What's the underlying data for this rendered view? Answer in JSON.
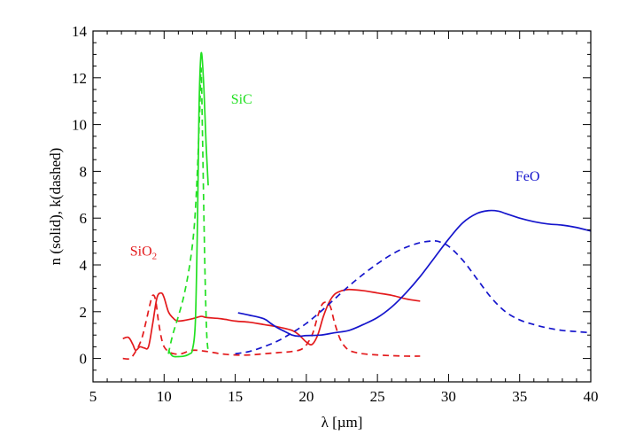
{
  "chart_data": {
    "type": "line",
    "title": "",
    "xlabel": "λ [µm]",
    "ylabel": "n (solid), k(dashed)",
    "xlim": [
      5,
      40
    ],
    "ylim": [
      -1,
      14
    ],
    "xticks": [
      5,
      10,
      15,
      20,
      25,
      30,
      35,
      40
    ],
    "yticks": [
      0,
      2,
      4,
      6,
      8,
      10,
      12,
      14
    ],
    "grid": false,
    "labels": [
      {
        "series": "SiO2",
        "text": "SiO",
        "sub": "2",
        "color": "#e31a1c"
      },
      {
        "series": "SiC",
        "text": "SiC",
        "sub": "",
        "color": "#22e022"
      },
      {
        "series": "FeO",
        "text": "FeO",
        "sub": "",
        "color": "#1515cc"
      }
    ],
    "series": [
      {
        "material": "SiO2",
        "quantity": "n",
        "style": "solid",
        "color": "#e31a1c",
        "x": [
          7.1,
          7.5,
          7.8,
          8.0,
          8.3,
          8.6,
          8.9,
          9.2,
          9.5,
          9.8,
          10.0,
          10.3,
          10.6,
          11.0,
          12.0,
          12.6,
          13.0,
          14.0,
          15.0,
          16.0,
          17.0,
          18.0,
          19.0,
          19.5,
          20.0,
          20.4,
          20.8,
          21.2,
          21.6,
          22.0,
          22.5,
          23.0,
          24.0,
          25.0,
          26.0,
          27.0,
          28.0
        ],
        "y": [
          0.85,
          0.9,
          0.6,
          0.35,
          0.5,
          0.45,
          0.5,
          1.5,
          2.6,
          2.8,
          2.6,
          2.0,
          1.75,
          1.6,
          1.7,
          1.8,
          1.75,
          1.7,
          1.6,
          1.55,
          1.45,
          1.35,
          1.2,
          1.0,
          0.7,
          0.6,
          1.0,
          1.8,
          2.4,
          2.75,
          2.9,
          2.95,
          2.9,
          2.8,
          2.7,
          2.55,
          2.45
        ]
      },
      {
        "material": "SiO2",
        "quantity": "k",
        "style": "dashed",
        "color": "#e31a1c",
        "x": [
          7.1,
          7.6,
          8.0,
          8.4,
          8.7,
          9.0,
          9.2,
          9.4,
          9.6,
          9.8,
          10.0,
          10.3,
          10.7,
          11.2,
          12.0,
          13.0,
          14.0,
          15.0,
          16.0,
          17.0,
          18.0,
          19.0,
          19.8,
          20.4,
          20.8,
          21.1,
          21.4,
          21.7,
          22.0,
          22.4,
          22.8,
          23.2,
          24.0,
          25.0,
          26.0,
          27.0,
          28.0
        ],
        "y": [
          0.0,
          0.0,
          0.3,
          0.8,
          1.5,
          2.3,
          2.7,
          2.5,
          1.6,
          0.9,
          0.5,
          0.3,
          0.2,
          0.2,
          0.35,
          0.3,
          0.2,
          0.15,
          0.15,
          0.2,
          0.25,
          0.3,
          0.45,
          1.0,
          1.8,
          2.3,
          2.4,
          2.2,
          1.5,
          0.8,
          0.45,
          0.3,
          0.2,
          0.15,
          0.12,
          0.1,
          0.1
        ]
      },
      {
        "material": "SiC",
        "quantity": "n",
        "style": "solid",
        "color": "#22e022",
        "x": [
          10.3,
          10.6,
          11.0,
          11.4,
          11.8,
          12.0,
          12.2,
          12.35,
          12.45,
          12.55,
          12.65,
          12.8,
          12.95,
          13.1
        ],
        "y": [
          0.35,
          0.1,
          0.08,
          0.1,
          0.2,
          0.4,
          1.6,
          6.0,
          10.5,
          12.6,
          13.0,
          11.5,
          9.2,
          7.4
        ]
      },
      {
        "material": "SiC",
        "quantity": "k",
        "style": "dashed",
        "color": "#22e022",
        "x": [
          10.3,
          10.6,
          11.0,
          11.4,
          11.8,
          12.1,
          12.3,
          12.5,
          12.6,
          12.7,
          12.8,
          12.9,
          13.0,
          13.1
        ],
        "y": [
          0.2,
          1.0,
          1.8,
          2.7,
          4.0,
          5.5,
          7.5,
          10.5,
          12.4,
          9.5,
          6.0,
          3.0,
          1.0,
          0.3
        ]
      },
      {
        "material": "FeO",
        "quantity": "n",
        "style": "solid",
        "color": "#1515cc",
        "x": [
          15.2,
          16.0,
          17.0,
          17.5,
          18.0,
          18.5,
          19.0,
          19.5,
          20.0,
          21.0,
          22.0,
          23.0,
          24.0,
          25.0,
          26.0,
          27.0,
          28.0,
          29.0,
          30.0,
          31.0,
          32.0,
          32.8,
          33.5,
          34.0,
          35.0,
          36.0,
          37.0,
          38.0,
          39.0,
          40.0
        ],
        "y": [
          1.95,
          1.85,
          1.7,
          1.5,
          1.3,
          1.15,
          1.0,
          0.95,
          0.98,
          1.0,
          1.1,
          1.2,
          1.45,
          1.75,
          2.2,
          2.8,
          3.5,
          4.3,
          5.1,
          5.8,
          6.2,
          6.32,
          6.3,
          6.2,
          6.0,
          5.85,
          5.75,
          5.7,
          5.6,
          5.45
        ]
      },
      {
        "material": "FeO",
        "quantity": "k",
        "style": "dashed",
        "color": "#1515cc",
        "x": [
          15.0,
          16.0,
          17.0,
          18.0,
          19.0,
          20.0,
          21.0,
          22.0,
          23.0,
          24.0,
          25.0,
          26.0,
          27.0,
          28.0,
          28.8,
          29.3,
          30.0,
          31.0,
          32.0,
          33.0,
          34.0,
          35.0,
          36.0,
          37.0,
          38.0,
          39.0,
          40.0
        ],
        "y": [
          0.2,
          0.3,
          0.5,
          0.75,
          1.1,
          1.5,
          2.0,
          2.55,
          3.1,
          3.6,
          4.05,
          4.45,
          4.75,
          4.95,
          5.02,
          5.0,
          4.8,
          4.2,
          3.4,
          2.6,
          2.0,
          1.65,
          1.45,
          1.3,
          1.2,
          1.15,
          1.1
        ]
      }
    ]
  }
}
